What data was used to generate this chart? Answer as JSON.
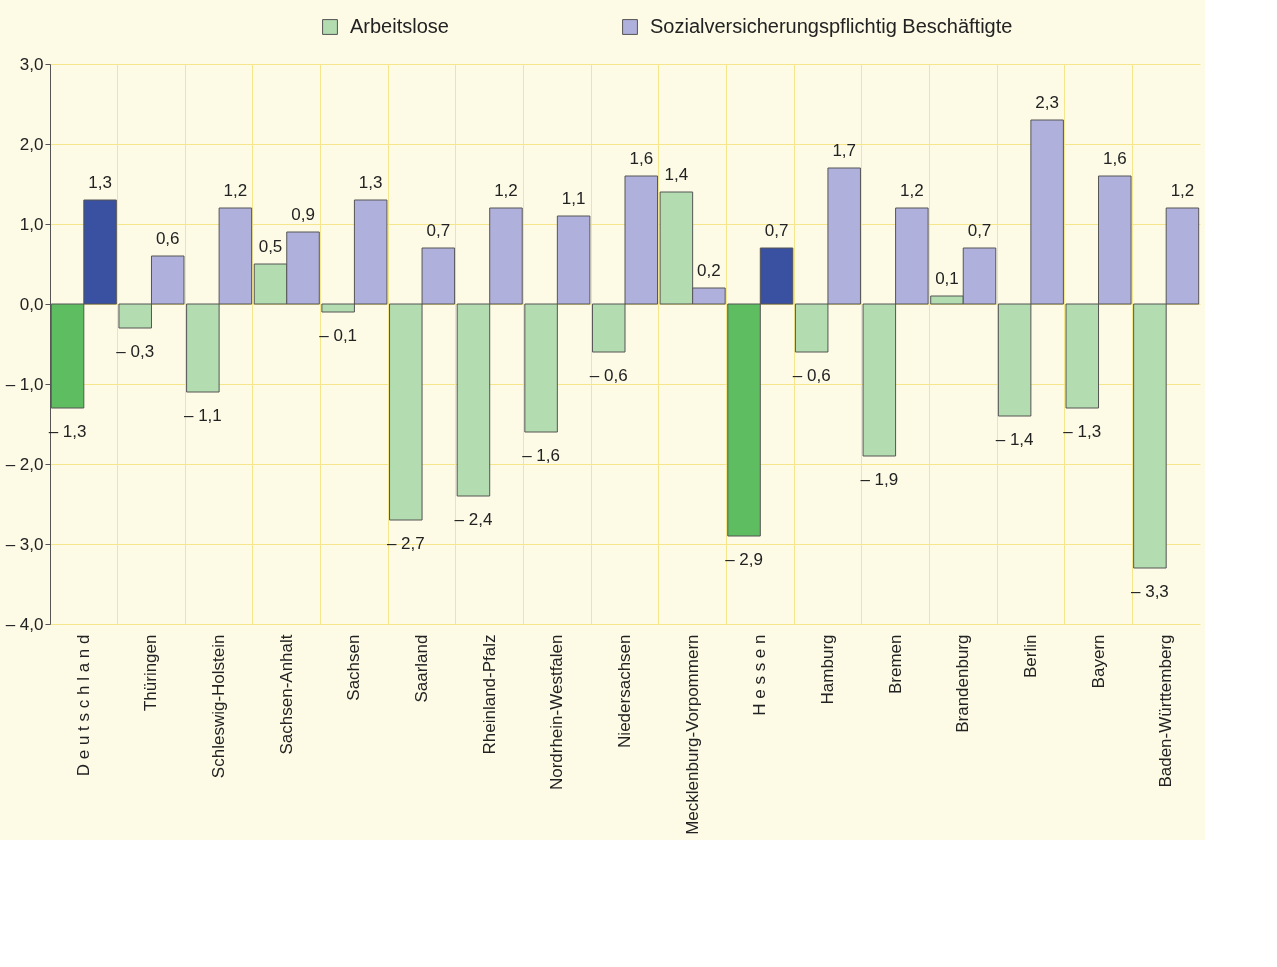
{
  "chart_data": {
    "type": "bar",
    "categories": [
      "D e u t s c h l a n d",
      "Thüringen",
      "Schleswig-Holstein",
      "Sachsen-Anhalt",
      "Sachsen",
      "Saarland",
      "Rheinland-Pfalz",
      "Nordrhein-Westfalen",
      "Niedersachsen",
      "Mecklenburg-Vorpommern",
      "H e s s e n",
      "Hamburg",
      "Bremen",
      "Brandenburg",
      "Berlin",
      "Bayern",
      "Baden-Württemberg"
    ],
    "series": [
      {
        "name": "Arbeitslose",
        "color": "#b3dcb0",
        "colors": [
          "#5fbd61",
          "#b3dcb0",
          "#b3dcb0",
          "#b3dcb0",
          "#b3dcb0",
          "#b3dcb0",
          "#b3dcb0",
          "#b3dcb0",
          "#b3dcb0",
          "#b3dcb0",
          "#5fbd61",
          "#b3dcb0",
          "#b3dcb0",
          "#b3dcb0",
          "#b3dcb0",
          "#b3dcb0",
          "#b3dcb0"
        ],
        "values": [
          -1.3,
          -0.3,
          -1.1,
          0.5,
          -0.1,
          -2.7,
          -2.4,
          -1.6,
          -0.6,
          1.4,
          -2.9,
          -0.6,
          -1.9,
          0.1,
          -1.4,
          -1.3,
          -3.3
        ],
        "value_labels": [
          "– 1,3",
          "– 0,3",
          "– 1,1",
          "0,5",
          "– 0,1",
          "– 2,7",
          "– 2,4",
          "– 1,6",
          "– 0,6",
          "1,4",
          "– 2,9",
          "– 0,6",
          "– 1,9",
          "0,1",
          "– 1,4",
          "– 1,3",
          "– 3,3"
        ]
      },
      {
        "name": "Sozialversicherungspflichtig Beschäftigte",
        "color": "#b0b0dc",
        "colors": [
          "#3a50a0",
          "#b0b0dc",
          "#b0b0dc",
          "#b0b0dc",
          "#b0b0dc",
          "#b0b0dc",
          "#b0b0dc",
          "#b0b0dc",
          "#b0b0dc",
          "#b0b0dc",
          "#3a50a0",
          "#b0b0dc",
          "#b0b0dc",
          "#b0b0dc",
          "#b0b0dc",
          "#b0b0dc",
          "#b0b0dc"
        ],
        "values": [
          1.3,
          0.6,
          1.2,
          0.9,
          1.3,
          0.7,
          1.2,
          1.1,
          1.6,
          0.2,
          0.7,
          1.7,
          1.2,
          0.7,
          2.3,
          1.6,
          1.2
        ],
        "value_labels": [
          "1,3",
          "0,6",
          "1,2",
          "0,9",
          "1,3",
          "0,7",
          "1,2",
          "1,1",
          "1,6",
          "0,2",
          "0,7",
          "1,7",
          "1,2",
          "0,7",
          "2,3",
          "1,6",
          "1,2"
        ]
      }
    ],
    "ylim": [
      -4.0,
      3.0
    ],
    "yticks": [
      {
        "value": -4,
        "label": "– 4,0"
      },
      {
        "value": -3,
        "label": "– 3,0"
      },
      {
        "value": -2,
        "label": "– 2,0"
      },
      {
        "value": -1,
        "label": "– 1,0"
      },
      {
        "value": 0,
        "label": "0,0"
      },
      {
        "value": 1,
        "label": "1,0"
      },
      {
        "value": 2,
        "label": "2,0"
      },
      {
        "value": 3,
        "label": "3,0"
      }
    ],
    "grid": true,
    "legend": "top"
  }
}
